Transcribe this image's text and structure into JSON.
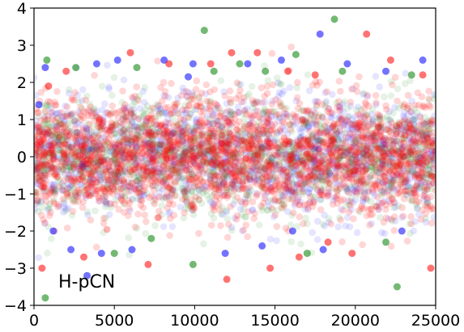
{
  "chart_data": {
    "type": "scatter",
    "title": "",
    "xlabel": "",
    "ylabel": "",
    "xlim": [
      0,
      25000
    ],
    "ylim": [
      -4,
      4
    ],
    "x_ticks": [
      0,
      5000,
      10000,
      15000,
      20000,
      25000
    ],
    "y_ticks": [
      -4,
      -3,
      -2,
      -1,
      0,
      1,
      2,
      3,
      4
    ],
    "x_tick_labels": [
      "0",
      "5000",
      "10000",
      "15000",
      "20000",
      "25000"
    ],
    "y_tick_labels": [
      "−4",
      "−3",
      "−2",
      "−1",
      "0",
      "1",
      "2",
      "3",
      "4"
    ],
    "annotation": "H-pCN",
    "grid": false,
    "legend": "none",
    "series": [
      {
        "color": "#0000ff",
        "points": [
          [
            300,
            1.4
          ],
          [
            3900,
            2.5
          ],
          [
            5200,
            2.6
          ],
          [
            9600,
            2.15
          ],
          [
            9900,
            2.5
          ],
          [
            15400,
            2.6
          ],
          [
            16100,
            -2.0
          ],
          [
            21900,
            2.3
          ],
          [
            1200,
            -2.0
          ],
          [
            2300,
            -2.5
          ],
          [
            4200,
            -2.6
          ],
          [
            6100,
            -2.5
          ],
          [
            8100,
            2.6
          ],
          [
            11900,
            -2.6
          ],
          [
            13300,
            2.5
          ],
          [
            14200,
            -2.4
          ],
          [
            18000,
            -2.5
          ],
          [
            19500,
            2.5
          ],
          [
            22900,
            -2.0
          ],
          [
            24200,
            2.6
          ],
          [
            700,
            2.4
          ],
          [
            17800,
            3.3
          ],
          [
            3300,
            -3.2
          ]
        ]
      },
      {
        "color": "#008000",
        "points": [
          [
            800,
            2.6
          ],
          [
            12800,
            2.5
          ],
          [
            16300,
            2.75
          ],
          [
            9900,
            -2.9
          ],
          [
            17000,
            -2.6
          ],
          [
            21900,
            -2.3
          ],
          [
            5000,
            -2.6
          ],
          [
            19200,
            2.3
          ],
          [
            2600,
            2.4
          ],
          [
            10600,
            3.4
          ],
          [
            18700,
            3.7
          ],
          [
            7300,
            -2.2
          ],
          [
            23500,
            2.2
          ],
          [
            14400,
            2.3
          ],
          [
            700,
            -3.8
          ],
          [
            22600,
            -3.5
          ],
          [
            11200,
            2.3
          ],
          [
            6400,
            2.4
          ]
        ]
      },
      {
        "color": "#ff0000",
        "points": [
          [
            900,
            1.9
          ],
          [
            12300,
            2.8
          ],
          [
            24200,
            2.2
          ],
          [
            19800,
            -2.6
          ],
          [
            14700,
            -3.0
          ],
          [
            16500,
            -2.7
          ],
          [
            12000,
            -3.3
          ],
          [
            24700,
            -3.0
          ],
          [
            3100,
            -2.7
          ],
          [
            20700,
            3.3
          ],
          [
            6000,
            2.8
          ],
          [
            8400,
            2.5
          ],
          [
            11000,
            2.5
          ],
          [
            15800,
            2.3
          ],
          [
            17500,
            2.2
          ],
          [
            18300,
            -2.3
          ],
          [
            2000,
            2.3
          ],
          [
            22200,
            2.6
          ],
          [
            500,
            -3.0
          ],
          [
            13900,
            2.8
          ],
          [
            7100,
            -2.9
          ]
        ]
      }
    ]
  }
}
